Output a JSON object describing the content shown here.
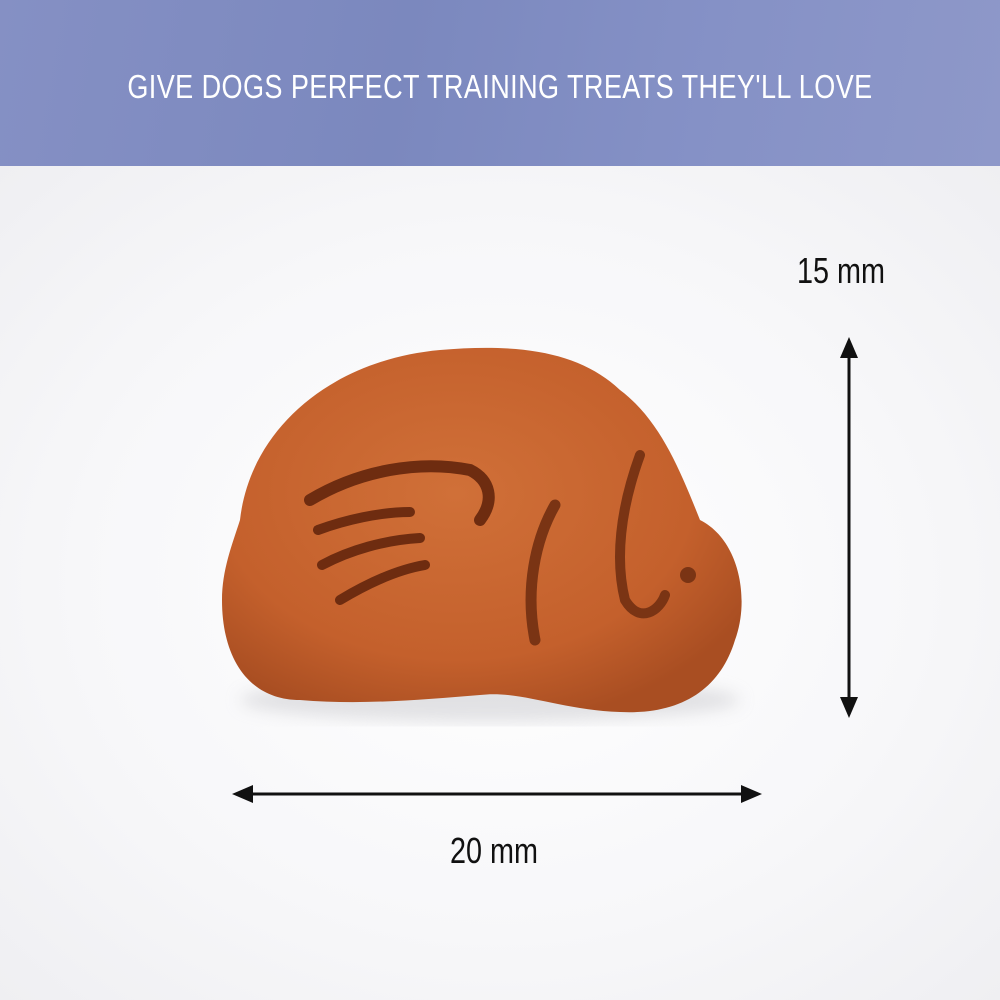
{
  "banner": {
    "title": "GIVE DOGS PERFECT TRAINING TREATS THEY'LL LOVE",
    "color": "#7f8bc1"
  },
  "dimensions": {
    "height_label": "15 mm",
    "width_label": "20 mm"
  },
  "treat": {
    "color": "#c8652f",
    "icon": "dog-treat-image"
  }
}
